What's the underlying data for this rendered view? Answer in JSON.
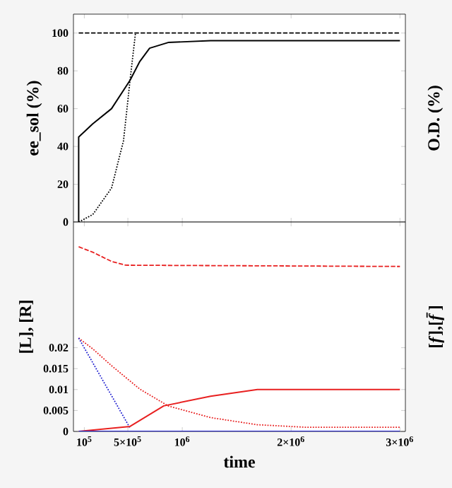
{
  "chart_data": [
    {
      "type": "line",
      "ylabel": "ee_sol (%)",
      "y2label": "O.D. (%)",
      "xlim": [
        0,
        3050000
      ],
      "ylim": [
        0,
        110
      ],
      "xticks": [
        {
          "value": 100000,
          "label": null
        },
        {
          "value": 500000,
          "label": null
        },
        {
          "value": 1000000,
          "label": null
        },
        {
          "value": 2000000,
          "label": null
        },
        {
          "value": 3000000,
          "label": null
        }
      ],
      "yticks": [
        0,
        20,
        40,
        60,
        80,
        100
      ],
      "tick_labels": "y",
      "series": [
        {
          "color": "#000000",
          "line_style": "dashed",
          "x": [
            48000,
            3000000
          ],
          "values": [
            100,
            100
          ]
        },
        {
          "color": "#000000",
          "line_style": "dotted",
          "x": [
            48000,
            178000,
            350000,
            460000,
            520000,
            570000
          ],
          "values": [
            0,
            4,
            18,
            43,
            75,
            100
          ]
        },
        {
          "color": "#000000",
          "line_style": "solid",
          "x": [
            48000,
            48000,
            178000,
            350000,
            520000,
            610000,
            700000,
            870000,
            1260000,
            3000000
          ],
          "values": [
            0,
            45,
            52,
            60,
            75,
            85,
            92,
            95,
            96,
            96
          ]
        }
      ]
    },
    {
      "type": "line",
      "xlabel": "time",
      "ylabel": "[L], [R]",
      "y2label": "[*f*],[*f̄*]",
      "xlim": [
        0,
        3050000
      ],
      "ylim": [
        0,
        0.05
      ],
      "xticks": [
        {
          "value": 100000,
          "label": "10$^{5}$"
        },
        {
          "value": 500000,
          "label": "5×10$^{5}$"
        },
        {
          "value": 1000000,
          "label": "10$^{6}$"
        },
        {
          "value": 2000000,
          "label": "2×10$^{6}$"
        },
        {
          "value": 3000000,
          "label": "3×10$^{6}$"
        }
      ],
      "yticks": [
        0,
        0.005,
        0.01,
        0.015,
        0.02
      ],
      "series": [
        {
          "color": "#e82020",
          "line_style": "dashed",
          "x": [
            48000,
            178000,
            350000,
            480000,
            3000000
          ],
          "values": [
            0.0441,
            0.0428,
            0.0406,
            0.0397,
            0.0394
          ]
        },
        {
          "color": "#e82020",
          "line_style": "dotted",
          "x": [
            48000,
            178000,
            350000,
            610000,
            870000,
            1260000,
            1690000,
            2130000,
            3000000
          ],
          "values": [
            0.0223,
            0.0197,
            0.0157,
            0.0101,
            0.0061,
            0.0033,
            0.0016,
            0.001,
            0.001
          ]
        },
        {
          "color": "#2020d0",
          "line_style": "dotted",
          "x": [
            48000,
            520000
          ],
          "values": [
            0.0223,
            0.0008
          ]
        },
        {
          "color": "#e82020",
          "line_style": "solid",
          "x": [
            48000,
            520000,
            830000,
            1260000,
            1690000,
            3000000
          ],
          "values": [
            0,
            0.0012,
            0.0061,
            0.0084,
            0.01,
            0.01
          ]
        },
        {
          "color": "#2020d0",
          "line_style": "solid",
          "x": [
            48000,
            3000000
          ],
          "values": [
            0,
            0
          ]
        }
      ]
    }
  ]
}
